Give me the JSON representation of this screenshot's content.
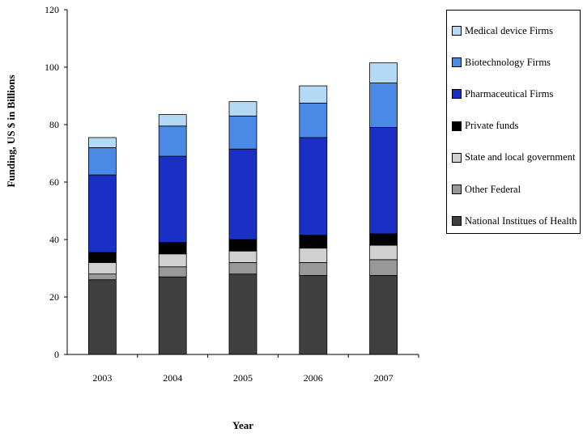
{
  "chart_data": {
    "type": "bar",
    "stacked": true,
    "categories": [
      "2003",
      "2004",
      "2005",
      "2006",
      "2007"
    ],
    "xlabel": "Year",
    "ylabel": "Funding, US $ in Billions",
    "ylim": [
      0,
      120
    ],
    "yticks": [
      "0",
      "20",
      "40",
      "60",
      "80",
      "100",
      "120"
    ],
    "legend_position": "right",
    "grid": false,
    "series": [
      {
        "name": "National Institues of Health",
        "color": "#404040",
        "values": [
          26.0,
          27.0,
          28.0,
          27.5,
          27.5
        ]
      },
      {
        "name": "Other Federal",
        "color": "#999999",
        "values": [
          2.0,
          3.5,
          4.0,
          4.5,
          5.5
        ]
      },
      {
        "name": "State and local government",
        "color": "#d0d0d0",
        "values": [
          4.0,
          4.5,
          4.0,
          5.0,
          5.0
        ]
      },
      {
        "name": "Private funds",
        "color": "#000000",
        "values": [
          3.5,
          4.0,
          4.0,
          4.5,
          4.0
        ]
      },
      {
        "name": "Pharmaceutical Firms",
        "color": "#1a2fc4",
        "values": [
          27.0,
          30.0,
          31.5,
          34.0,
          37.0
        ]
      },
      {
        "name": "Biotechnology Firms",
        "color": "#4a8ae6",
        "values": [
          9.5,
          10.5,
          11.5,
          12.0,
          15.5
        ]
      },
      {
        "name": "Medical device Firms",
        "color": "#b3d9f5",
        "values": [
          3.5,
          4.0,
          5.0,
          6.0,
          7.0
        ]
      }
    ]
  }
}
